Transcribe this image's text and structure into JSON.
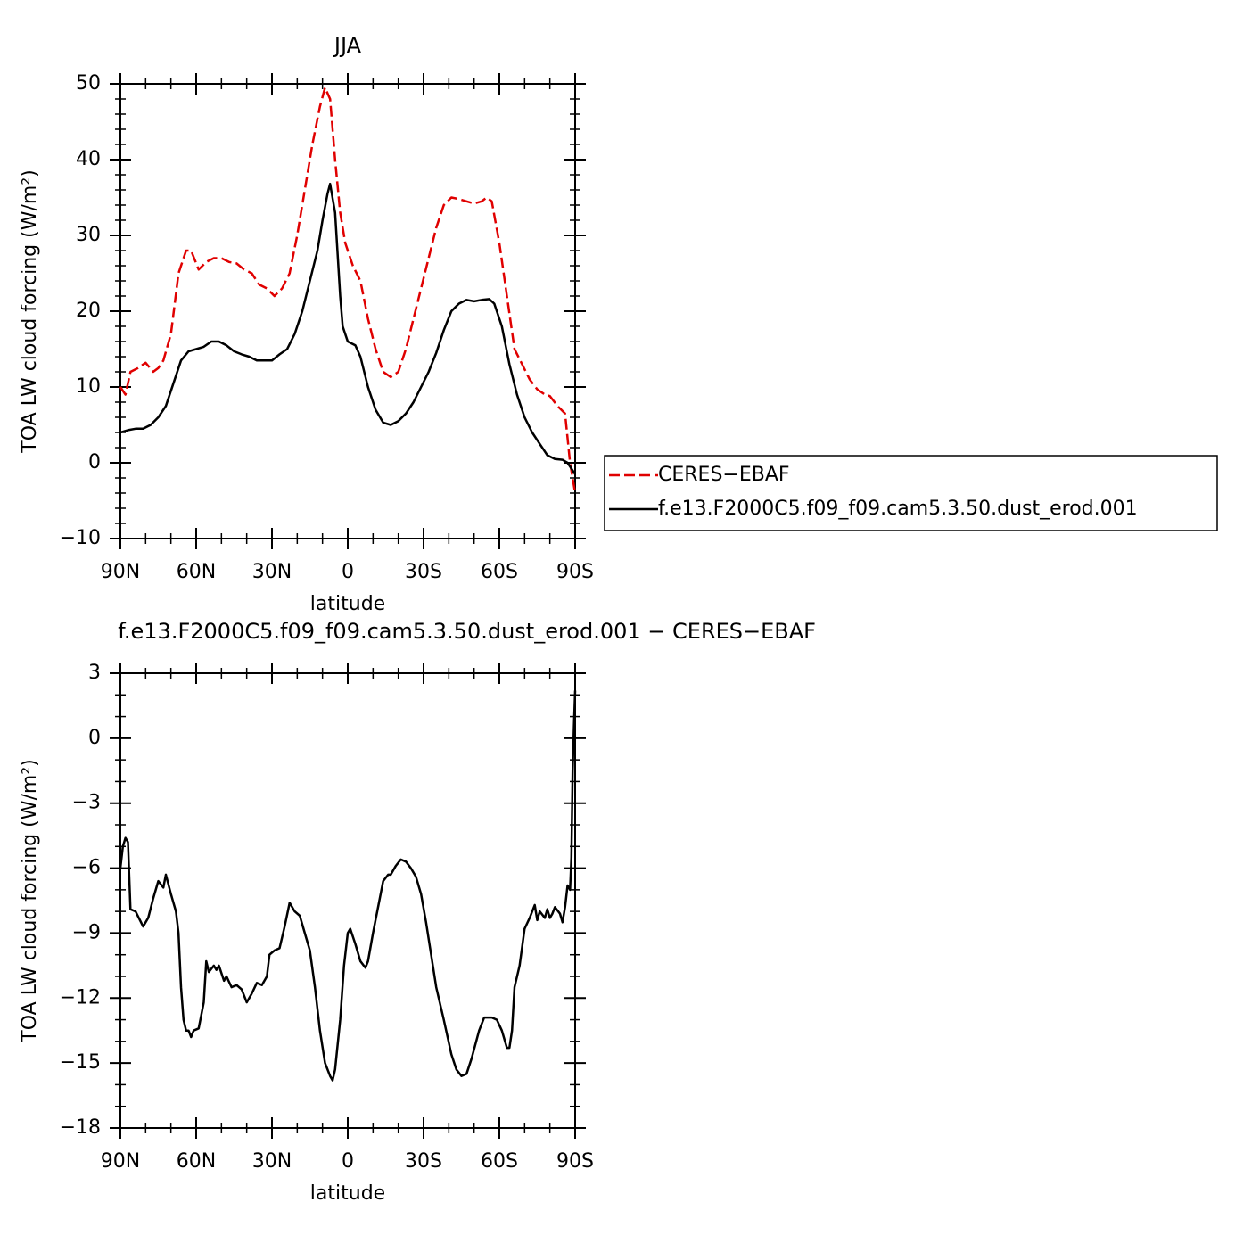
{
  "chart_data": [
    {
      "type": "line",
      "title": "JJA",
      "x_label": "latitude",
      "y_label": "TOA LW cloud forcing (W/m²)",
      "xlim": [
        90,
        -90
      ],
      "xticks": [
        {
          "value": 90,
          "label": "90N"
        },
        {
          "value": 60,
          "label": "60N"
        },
        {
          "value": 30,
          "label": "30N"
        },
        0,
        {
          "value": -30,
          "label": "30S"
        },
        {
          "value": -60,
          "label": "60S"
        },
        {
          "value": -90,
          "label": "90S"
        }
      ],
      "ylim": [
        -10,
        50
      ],
      "yticks": [
        {
          "value": -10,
          "label": "−10"
        },
        0,
        10,
        20,
        30,
        40,
        50
      ],
      "legend": "outside-right",
      "series": [
        {
          "name": "CERES−EBAF",
          "color": "#e00000",
          "dash": true,
          "x": [
            90,
            88,
            86,
            83,
            80,
            77,
            75,
            73,
            70,
            67,
            64,
            62,
            59,
            56,
            53,
            50,
            47,
            44,
            41,
            38,
            35,
            32,
            29,
            26,
            23,
            20,
            17,
            14,
            11,
            9,
            7,
            5,
            3,
            1,
            -2,
            -5,
            -8,
            -11,
            -14,
            -17,
            -20,
            -23,
            -26,
            -29,
            -32,
            -35,
            -38,
            -41,
            -44,
            -47,
            -50,
            -53,
            -55,
            -57,
            -60,
            -63,
            -66,
            -69,
            -72,
            -75,
            -78,
            -80,
            -83,
            -86,
            -88,
            -90
          ],
          "values": [
            10,
            9,
            12,
            12.5,
            13.2,
            12,
            12.5,
            13.5,
            17,
            25,
            28,
            28,
            25.5,
            26.5,
            27,
            27,
            26.5,
            26.3,
            25.5,
            25,
            23.5,
            23,
            22,
            23,
            25,
            30,
            36,
            42,
            47,
            49.5,
            48,
            40,
            33,
            29,
            26,
            24,
            19,
            15,
            12,
            11.3,
            12,
            15,
            19,
            23,
            27,
            31,
            34,
            35,
            34.8,
            34.5,
            34.2,
            34.5,
            35,
            34.5,
            29,
            22,
            15,
            13,
            11,
            9.7,
            9,
            8.8,
            7.5,
            6.5,
            0,
            -4
          ]
        },
        {
          "name": "f.e13.F2000C5.f09_f09.cam5.3.50.dust_erod.001",
          "color": "#000000",
          "dash": false,
          "x": [
            90,
            87,
            84,
            81,
            78,
            75,
            72,
            69,
            66,
            63,
            60,
            57,
            54,
            51,
            48,
            45,
            42,
            39,
            36,
            33,
            30,
            27,
            24,
            21,
            18,
            15,
            12,
            10,
            8,
            7,
            5,
            3,
            2,
            0,
            -3,
            -5,
            -8,
            -11,
            -14,
            -17,
            -20,
            -23,
            -26,
            -29,
            -32,
            -35,
            -38,
            -41,
            -44,
            -47,
            -50,
            -53,
            -56,
            -58,
            -61,
            -64,
            -67,
            -70,
            -73,
            -76,
            -79,
            -82,
            -85,
            -87,
            -90
          ],
          "values": [
            4,
            4.3,
            4.5,
            4.5,
            5,
            6,
            7.5,
            10.5,
            13.5,
            14.7,
            15,
            15.3,
            16,
            16,
            15.5,
            14.7,
            14.3,
            14,
            13.5,
            13.5,
            13.5,
            14.3,
            15,
            17,
            20,
            24,
            28,
            32,
            35.5,
            36.8,
            33,
            22,
            18,
            16,
            15.5,
            14,
            10,
            7,
            5.3,
            5,
            5.5,
            6.5,
            8,
            10,
            12,
            14.5,
            17.5,
            20,
            21,
            21.5,
            21.3,
            21.5,
            21.6,
            21,
            18,
            13,
            9,
            6,
            4,
            2.5,
            1,
            0.5,
            0.4,
            0,
            -1.5
          ]
        }
      ]
    },
    {
      "type": "line",
      "title": "f.e13.F2000C5.f09_f09.cam5.3.50.dust_erod.001 − CERES−EBAF",
      "x_label": "latitude",
      "y_label": "TOA LW cloud forcing (W/m²)",
      "xlim": [
        90,
        -90
      ],
      "xticks": [
        {
          "value": 90,
          "label": "90N"
        },
        {
          "value": 60,
          "label": "60N"
        },
        {
          "value": 30,
          "label": "30N"
        },
        0,
        {
          "value": -30,
          "label": "30S"
        },
        {
          "value": -60,
          "label": "60S"
        },
        {
          "value": -90,
          "label": "90S"
        }
      ],
      "ylim": [
        -18,
        3
      ],
      "yticks": [
        {
          "value": -18,
          "label": "−18"
        },
        {
          "value": -15,
          "label": "−15"
        },
        {
          "value": -12,
          "label": "−12"
        },
        {
          "value": -9,
          "label": "−9"
        },
        {
          "value": -6,
          "label": "−6"
        },
        {
          "value": -3,
          "label": "−3"
        },
        0,
        3
      ],
      "series": [
        {
          "color": "#000000",
          "dash": false,
          "x": [
            90,
            89,
            88,
            87,
            86,
            84,
            81,
            79,
            77,
            75,
            73,
            72,
            70,
            68,
            67,
            66,
            65,
            64,
            63,
            62,
            61,
            59,
            57,
            56,
            55,
            53,
            52,
            51,
            49,
            48,
            46,
            44,
            42,
            40,
            38,
            36,
            34,
            32,
            31,
            29,
            27,
            25,
            23,
            21,
            19,
            17,
            15,
            13,
            11,
            9,
            7,
            6,
            5,
            3,
            1.5,
            0,
            -1,
            -3,
            -5,
            -7,
            -8,
            -10,
            -12,
            -14,
            -16,
            -17,
            -19,
            -21,
            -23,
            -25,
            -27,
            -29,
            -31,
            -33,
            -35,
            -38,
            -41,
            -43,
            -45,
            -47,
            -49,
            -52,
            -54,
            -57,
            -59,
            -61,
            -63,
            -64,
            -65,
            -66,
            -68,
            -70,
            -72,
            -74,
            -75,
            -76,
            -78,
            -79,
            -80,
            -81,
            -82,
            -84,
            -85,
            -86,
            -87,
            -88,
            -88.5,
            -89,
            -89.5,
            -90
          ],
          "values": [
            -6,
            -5,
            -4.6,
            -4.8,
            -7.9,
            -8,
            -8.7,
            -8.3,
            -7.4,
            -6.6,
            -6.9,
            -6.3,
            -7.2,
            -8,
            -9,
            -11.5,
            -13,
            -13.5,
            -13.5,
            -13.8,
            -13.5,
            -13.4,
            -12.2,
            -10.3,
            -10.8,
            -10.5,
            -10.7,
            -10.5,
            -11.2,
            -11,
            -11.5,
            -11.4,
            -11.6,
            -12.2,
            -11.8,
            -11.3,
            -11.4,
            -11,
            -10,
            -9.8,
            -9.7,
            -8.7,
            -7.6,
            -8,
            -8.2,
            -9,
            -9.8,
            -11.5,
            -13.5,
            -15,
            -15.6,
            -15.8,
            -15.3,
            -13,
            -10.5,
            -9,
            -8.8,
            -9.5,
            -10.3,
            -10.6,
            -10.3,
            -9,
            -7.8,
            -6.6,
            -6.3,
            -6.3,
            -5.9,
            -5.6,
            -5.7,
            -6,
            -6.4,
            -7.2,
            -8.5,
            -10,
            -11.5,
            -13,
            -14.6,
            -15.3,
            -15.6,
            -15.5,
            -14.8,
            -13.5,
            -12.9,
            -12.9,
            -13,
            -13.5,
            -14.3,
            -14.3,
            -13.5,
            -11.5,
            -10.5,
            -8.8,
            -8.3,
            -7.7,
            -8.4,
            -8,
            -8.3,
            -7.9,
            -8.3,
            -8.1,
            -7.8,
            -8.1,
            -8.5,
            -7.8,
            -6.8,
            -7,
            -5.5,
            -1.5,
            0.5,
            2.2
          ]
        }
      ]
    }
  ]
}
